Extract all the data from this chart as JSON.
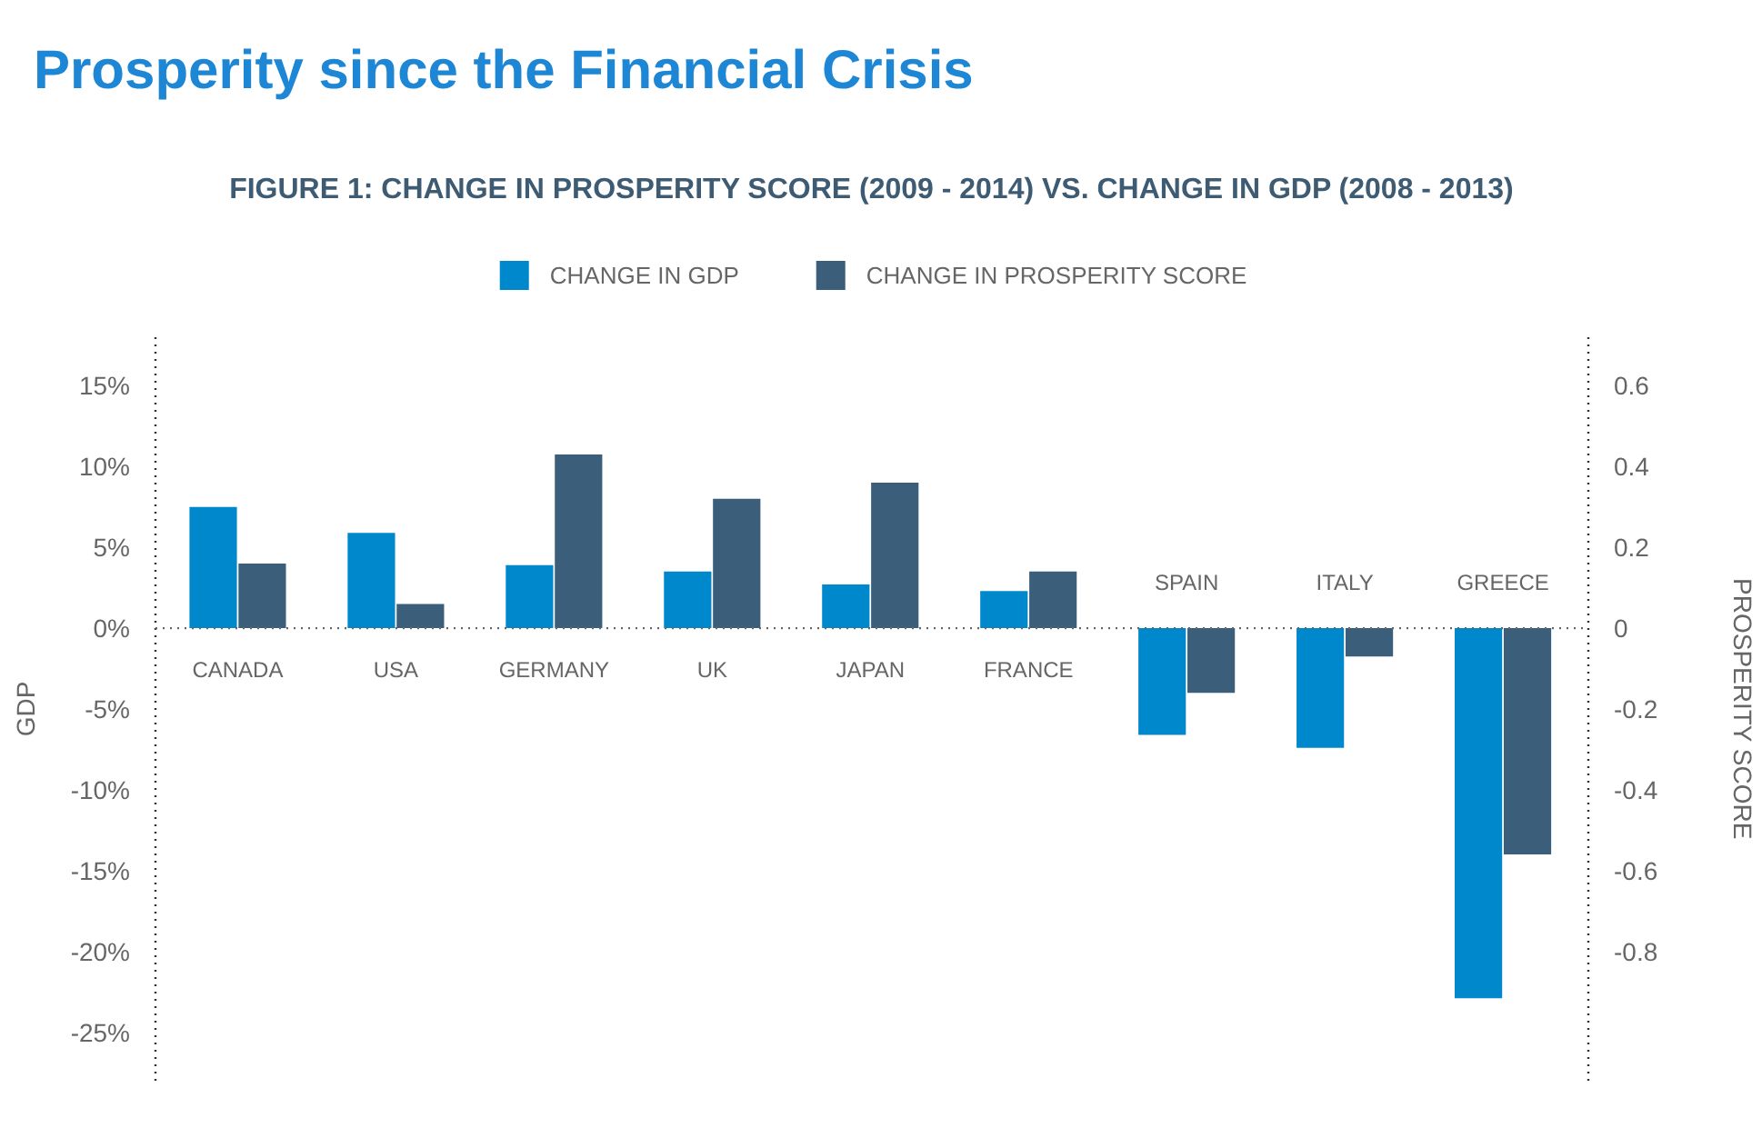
{
  "chart_data": {
    "type": "bar",
    "title": "Prosperity since the Financial Crisis",
    "subtitle": "FIGURE 1: CHANGE IN PROSPERITY SCORE (2009 - 2014) VS. CHANGE IN GDP (2008 - 2013)",
    "ylabel": "GDP",
    "y2label": "PROSPERITY SCORE",
    "categories": [
      "CANADA",
      "USA",
      "GERMANY",
      "UK",
      "JAPAN",
      "FRANCE",
      "SPAIN",
      "ITALY",
      "GREECE"
    ],
    "series": [
      {
        "name": "CHANGE IN GDP",
        "color": "#0088cc",
        "values": [
          7.5,
          5.9,
          3.9,
          3.5,
          2.7,
          2.3,
          -6.6,
          -7.4,
          -22.9
        ]
      },
      {
        "name": "CHANGE IN PROSPERITY SCORE",
        "color": "#3b5e7b",
        "axis": "y2",
        "values": [
          0.16,
          0.06,
          0.43,
          0.32,
          0.36,
          0.14,
          -0.16,
          -0.07,
          -0.56
        ]
      }
    ],
    "ylim": [
      -28,
      18
    ],
    "yticks": [
      {
        "value": 15,
        "label": "15%"
      },
      {
        "value": 10,
        "label": "10%"
      },
      {
        "value": 5,
        "label": "5%"
      },
      {
        "value": 0,
        "label": "0%"
      },
      {
        "value": -5,
        "label": "-5%"
      },
      {
        "value": -10,
        "label": "-10%"
      },
      {
        "value": -15,
        "label": "-15%"
      },
      {
        "value": -20,
        "label": "-20%"
      },
      {
        "value": -25,
        "label": "-25%"
      }
    ],
    "y2lim": [
      -1.12,
      0.72
    ],
    "y2ticks": [
      0.6,
      0.4,
      0.2,
      0,
      -0.2,
      -0.4,
      -0.6,
      -0.8
    ],
    "ref_lines": [
      {
        "axis": "y",
        "value": 0,
        "color": "#666666",
        "line_style": "dotted"
      }
    ],
    "grid": false,
    "legend": "top"
  }
}
